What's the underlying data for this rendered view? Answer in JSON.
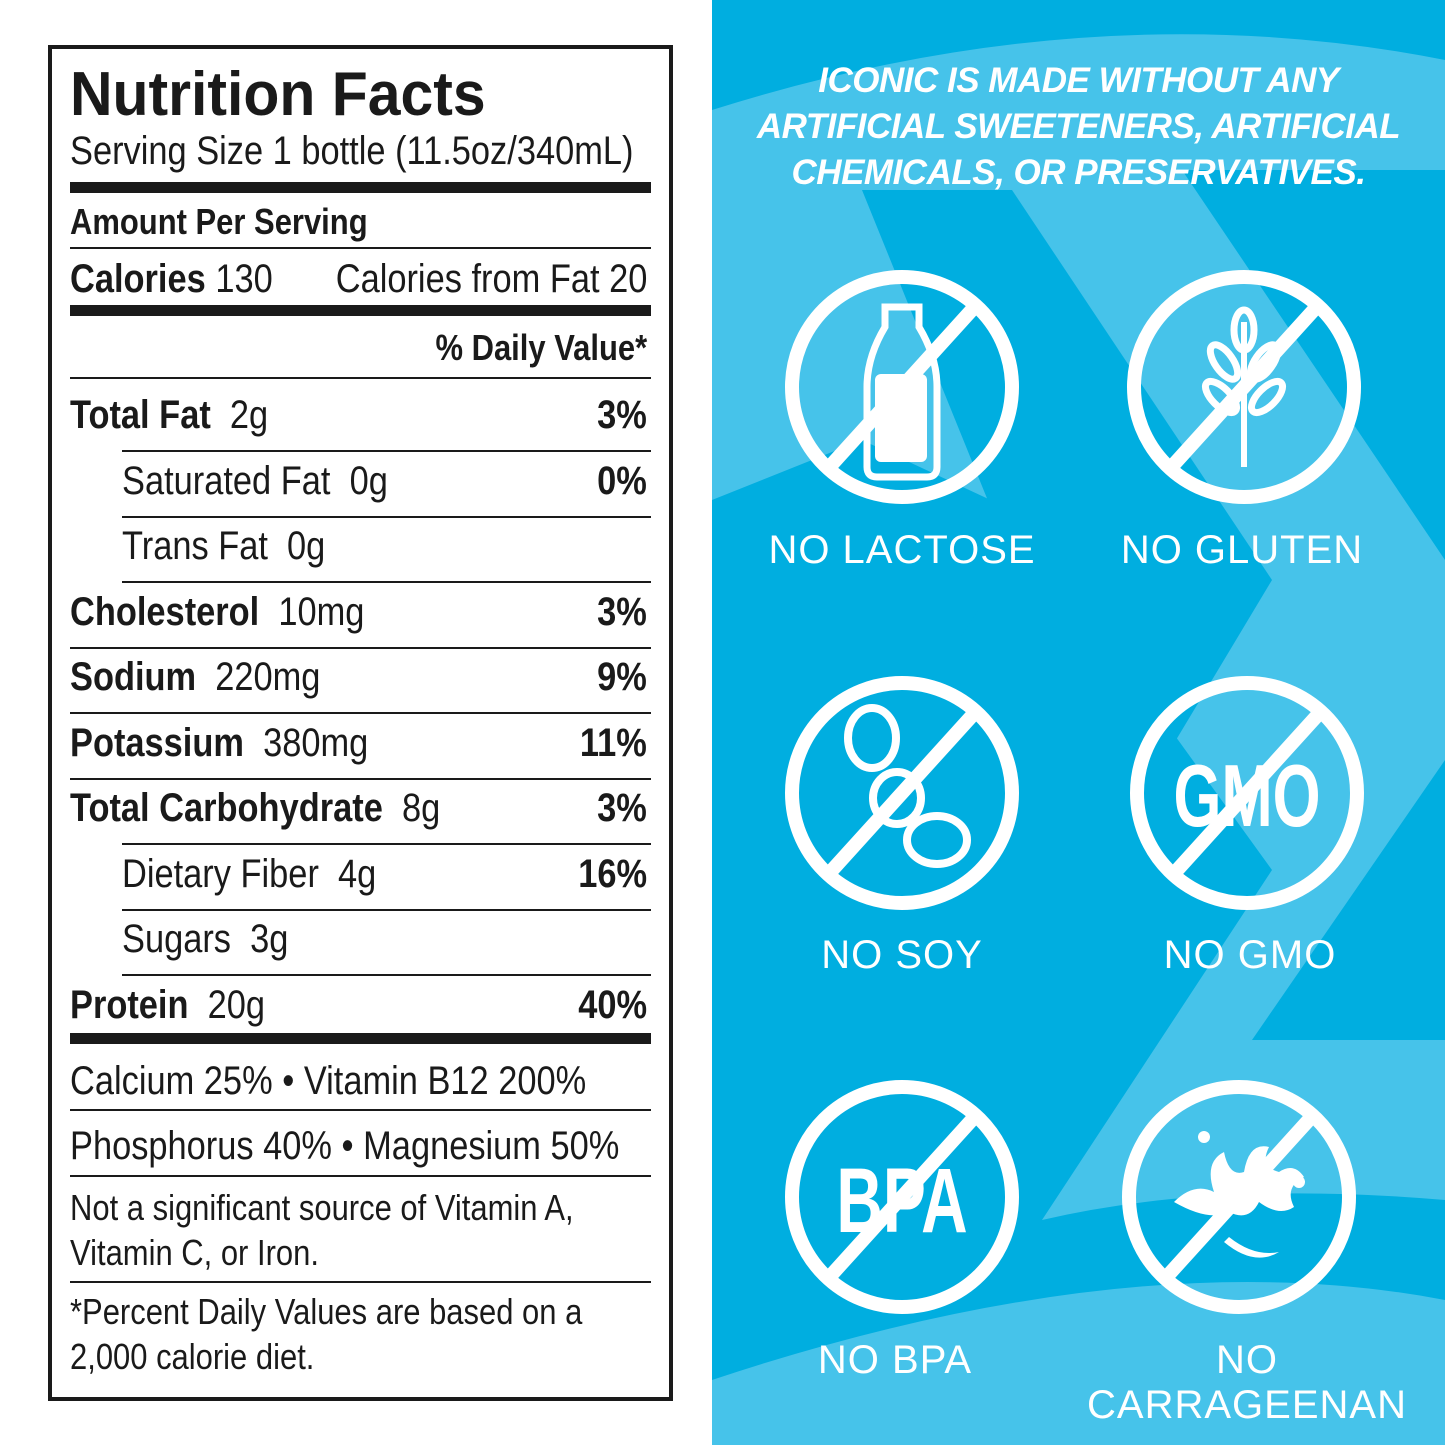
{
  "nutrition": {
    "title": "Nutrition Facts",
    "serving_size": "Serving Size 1 bottle (11.5oz/340mL)",
    "amount_per_serving": "Amount Per Serving",
    "calories_label": "Calories",
    "calories_value": "130",
    "calories_from_fat": "Calories from Fat 20",
    "daily_value_header": "% Daily Value*",
    "rows": [
      {
        "label": "Total Fat",
        "amount": "2g",
        "dv": "3%",
        "bold": true,
        "indent": false
      },
      {
        "label": "Saturated Fat",
        "amount": "0g",
        "dv": "0%",
        "bold": false,
        "indent": true
      },
      {
        "label": "Trans Fat",
        "amount": "0g",
        "dv": "",
        "bold": false,
        "indent": true
      },
      {
        "label": "Cholesterol",
        "amount": "10mg",
        "dv": "3%",
        "bold": true,
        "indent": false
      },
      {
        "label": "Sodium",
        "amount": "220mg",
        "dv": "9%",
        "bold": true,
        "indent": false
      },
      {
        "label": "Potassium",
        "amount": "380mg",
        "dv": "11%",
        "bold": true,
        "indent": false
      },
      {
        "label": "Total Carbohydrate",
        "amount": "8g",
        "dv": "3%",
        "bold": true,
        "indent": false
      },
      {
        "label": "Dietary Fiber",
        "amount": "4g",
        "dv": "16%",
        "bold": false,
        "indent": true
      },
      {
        "label": "Sugars",
        "amount": "3g",
        "dv": "",
        "bold": false,
        "indent": true
      },
      {
        "label": "Protein",
        "amount": "20g",
        "dv": "40%",
        "bold": true,
        "indent": false
      }
    ],
    "vitamins_line1": "Calcium 25%  •  Vitamin B12 200%",
    "vitamins_line2": "Phosphorus 40% • Magnesium 50%",
    "not_significant_1": "Not a significant source of Vitamin A,",
    "not_significant_2": "Vitamin C, or Iron.",
    "footnote_1": "*Percent Daily Values are based on a",
    "footnote_2": "2,000 calorie diet."
  },
  "panel": {
    "headline": [
      "ICONIC IS MADE WITHOUT ANY",
      "ARTIFICIAL SWEETENERS, ARTIFICIAL",
      "CHEMICALS, OR PRESERVATIVES."
    ],
    "badges": [
      {
        "label": "NO LACTOSE",
        "icon": "milk-bottle-icon"
      },
      {
        "label": "NO GLUTEN",
        "icon": "wheat-icon"
      },
      {
        "label": "NO SOY",
        "icon": "soybean-icon",
        "icon_text": ""
      },
      {
        "label": "NO GMO",
        "icon": "gmo-text-icon",
        "icon_text": "GMO"
      },
      {
        "label": "NO BPA",
        "icon": "bpa-text-icon",
        "icon_text": "BPA"
      },
      {
        "label": "NO CARRAGEENAN",
        "icon": "seaweed-icon"
      }
    ],
    "colors": {
      "dark": "#00aee0",
      "light": "#46c3ea",
      "text": "#ffffff"
    }
  }
}
